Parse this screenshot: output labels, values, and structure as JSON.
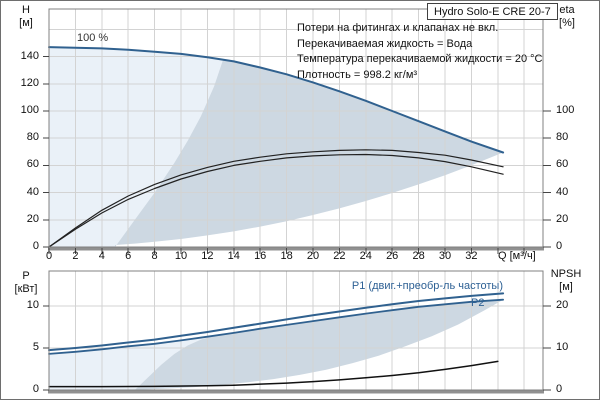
{
  "window": {
    "background": "#ffffff",
    "border_color": "#6e6e6e"
  },
  "axes": {
    "h": [
      "H",
      "[м]"
    ],
    "eta": [
      "eta",
      "[%]"
    ],
    "p": [
      "P",
      "[кВт]"
    ],
    "npsh": [
      "NPSH",
      "[м]"
    ],
    "q": "Q [м³/ч]"
  },
  "annotations": [
    "Потери на фитингах и клапанах не вкл.",
    "Перекачиваемая жидкость = Вода",
    "Температура перекачиваемой жидкости = 20 °C",
    "Плотность = 998.2 кг/м³"
  ],
  "curve_labels": {
    "speed": "100 %",
    "p1": "P1 (двиг.+преобр-ль частоты)",
    "p2": "P2"
  },
  "colors": {
    "main_curve": "#30618f",
    "eta_curve": "#222222",
    "npsh_curve": "#111111",
    "curve_label": "#2d6094",
    "area_light": "#eaf1f8",
    "area_envelope": "#cdd8e2",
    "grid": "#d3d3d3",
    "plot_border": "#808080",
    "axis_line": "#909090",
    "text": "#111111"
  },
  "chart_data": [
    {
      "type": "line",
      "title": "Hydro Solo-E CRE 20-7",
      "xlabel": "Q [м³/ч]",
      "ylabel_left": "H [м]",
      "ylabel_right": "eta [%]",
      "x_axis": {
        "ticks": [
          0,
          2,
          4,
          6,
          8,
          10,
          12,
          14,
          16,
          18,
          20,
          22,
          24,
          26,
          28,
          30,
          32
        ],
        "grid": [
          0,
          2,
          4,
          6,
          8,
          10,
          12,
          14,
          16,
          18,
          20,
          22,
          24,
          26,
          28,
          30,
          32,
          34,
          36
        ],
        "range": [
          0,
          37.4
        ]
      },
      "y_left": {
        "ticks": [
          0,
          20,
          40,
          60,
          80,
          100,
          120,
          140
        ],
        "grid": [
          20,
          40,
          60,
          80,
          100,
          120,
          140,
          160
        ],
        "range": [
          0,
          175
        ]
      },
      "y_right": {
        "ticks": [
          0,
          20,
          40,
          60,
          80,
          100
        ],
        "range": [
          0,
          175
        ]
      },
      "series": [
        {
          "name": "head-100pct-speed",
          "axis": "left",
          "color": "#30618f",
          "width": 2,
          "points": [
            [
              0,
              147
            ],
            [
              2,
              146.5
            ],
            [
              4,
              146
            ],
            [
              6,
              145
            ],
            [
              8,
              143.5
            ],
            [
              10,
              142
            ],
            [
              12,
              139.5
            ],
            [
              14,
              136.5
            ],
            [
              16,
              132
            ],
            [
              18,
              127
            ],
            [
              20,
              121
            ],
            [
              22,
              114.5
            ],
            [
              24,
              107.5
            ],
            [
              26,
              100
            ],
            [
              28,
              92.5
            ],
            [
              30,
              85
            ],
            [
              32,
              77.5
            ],
            [
              34.4,
              69.5
            ]
          ]
        },
        {
          "name": "eta-upper",
          "axis": "right",
          "color": "#222222",
          "width": 1.2,
          "points": [
            [
              0,
              0
            ],
            [
              2,
              14
            ],
            [
              4,
              27
            ],
            [
              6,
              37.5
            ],
            [
              8,
              46
            ],
            [
              10,
              53
            ],
            [
              12,
              58.5
            ],
            [
              14,
              63
            ],
            [
              16,
              66
            ],
            [
              18,
              68.5
            ],
            [
              20,
              70
            ],
            [
              22,
              71
            ],
            [
              24,
              71.5
            ],
            [
              26,
              71
            ],
            [
              28,
              69.5
            ],
            [
              30,
              67.5
            ],
            [
              32,
              64
            ],
            [
              34.4,
              59
            ]
          ]
        },
        {
          "name": "eta-lower",
          "axis": "right",
          "color": "#222222",
          "width": 1.2,
          "points": [
            [
              0,
              0
            ],
            [
              2,
              13
            ],
            [
              4,
              25
            ],
            [
              6,
              35
            ],
            [
              8,
              43
            ],
            [
              10,
              50
            ],
            [
              12,
              55.5
            ],
            [
              14,
              60
            ],
            [
              16,
              63
            ],
            [
              18,
              65.5
            ],
            [
              20,
              67
            ],
            [
              22,
              67.8
            ],
            [
              24,
              68
            ],
            [
              26,
              67.3
            ],
            [
              28,
              65.5
            ],
            [
              30,
              62.8
            ],
            [
              32,
              59
            ],
            [
              34.4,
              53.5
            ]
          ]
        }
      ],
      "regions": [
        {
          "name": "qh-area-light",
          "color": "#eaf1f8",
          "points": [
            [
              0,
              0
            ],
            [
              0,
              147
            ],
            [
              2,
              146.5
            ],
            [
              4,
              146
            ],
            [
              6,
              145
            ],
            [
              8,
              143.5
            ],
            [
              10,
              142
            ],
            [
              12,
              139.5
            ],
            [
              13.2,
              138
            ],
            [
              12.5,
              118
            ],
            [
              11.5,
              96
            ],
            [
              10.5,
              78
            ],
            [
              9.5,
              62
            ],
            [
              8,
              40
            ],
            [
              6.5,
              20
            ],
            [
              5,
              0
            ]
          ]
        },
        {
          "name": "operating-envelope",
          "color": "#cdd8e2",
          "points": [
            [
              5,
              0
            ],
            [
              6.5,
              20
            ],
            [
              8,
              40
            ],
            [
              9.5,
              62
            ],
            [
              10.5,
              78
            ],
            [
              11.5,
              96
            ],
            [
              12.5,
              118
            ],
            [
              13.2,
              138
            ],
            [
              14,
              136.5
            ],
            [
              16,
              132
            ],
            [
              18,
              127
            ],
            [
              20,
              121
            ],
            [
              22,
              114.5
            ],
            [
              24,
              107.5
            ],
            [
              26,
              100
            ],
            [
              28,
              92.5
            ],
            [
              30,
              85
            ],
            [
              32,
              77.5
            ],
            [
              34.4,
              69.5
            ],
            [
              32,
              60.1
            ],
            [
              30,
              52.8
            ],
            [
              28,
              46
            ],
            [
              26,
              39.7
            ],
            [
              24,
              33.8
            ],
            [
              22,
              28.4
            ],
            [
              20,
              23.5
            ],
            [
              18,
              19
            ],
            [
              16,
              15
            ],
            [
              14,
              11.5
            ],
            [
              12,
              8.5
            ],
            [
              10,
              5.9
            ],
            [
              8,
              3.8
            ],
            [
              6.5,
              2.5
            ],
            [
              5,
              1.5
            ]
          ]
        }
      ]
    },
    {
      "type": "line",
      "title": "",
      "xlabel": "Q [м³/ч]",
      "ylabel_left": "P [кВт]",
      "ylabel_right": "NPSH [м]",
      "x_axis": {
        "ticks": [],
        "grid": [
          0,
          2,
          4,
          6,
          8,
          10,
          12,
          14,
          16,
          18,
          20,
          22,
          24,
          26,
          28,
          30,
          32,
          34,
          36
        ],
        "range": [
          0,
          37.4
        ]
      },
      "y_left": {
        "ticks": [
          0,
          5,
          10
        ],
        "grid": [
          5,
          10
        ],
        "range": [
          0,
          14.2
        ]
      },
      "y_right": {
        "ticks": [
          0,
          10,
          20
        ],
        "range": [
          0,
          28.3
        ]
      },
      "series": [
        {
          "name": "p1-motor-plus-frequency-converter",
          "axis": "left",
          "color": "#30618f",
          "width": 2,
          "points": [
            [
              0,
              4.75
            ],
            [
              2,
              5.0
            ],
            [
              4,
              5.3
            ],
            [
              6,
              5.65
            ],
            [
              8,
              6.0
            ],
            [
              10,
              6.45
            ],
            [
              12,
              6.9
            ],
            [
              14,
              7.4
            ],
            [
              16,
              7.9
            ],
            [
              18,
              8.4
            ],
            [
              20,
              8.9
            ],
            [
              22,
              9.35
            ],
            [
              24,
              9.8
            ],
            [
              26,
              10.2
            ],
            [
              28,
              10.6
            ],
            [
              30,
              10.9
            ],
            [
              32,
              11.2
            ],
            [
              34.4,
              11.5
            ]
          ]
        },
        {
          "name": "p2-shaft-power",
          "axis": "left",
          "color": "#30618f",
          "width": 1.8,
          "points": [
            [
              0,
              4.3
            ],
            [
              2,
              4.55
            ],
            [
              4,
              4.85
            ],
            [
              6,
              5.2
            ],
            [
              8,
              5.5
            ],
            [
              10,
              5.9
            ],
            [
              12,
              6.35
            ],
            [
              14,
              6.8
            ],
            [
              16,
              7.3
            ],
            [
              18,
              7.75
            ],
            [
              20,
              8.2
            ],
            [
              22,
              8.65
            ],
            [
              24,
              9.1
            ],
            [
              26,
              9.5
            ],
            [
              28,
              9.9
            ],
            [
              30,
              10.2
            ],
            [
              32,
              10.5
            ],
            [
              34.4,
              10.75
            ]
          ]
        },
        {
          "name": "npsh",
          "axis": "right",
          "color": "#111111",
          "width": 1.5,
          "points": [
            [
              0,
              0.8
            ],
            [
              4,
              0.8
            ],
            [
              8,
              0.85
            ],
            [
              12,
              1.0
            ],
            [
              14,
              1.15
            ],
            [
              16,
              1.4
            ],
            [
              18,
              1.65
            ],
            [
              20,
              2.0
            ],
            [
              22,
              2.4
            ],
            [
              24,
              2.9
            ],
            [
              26,
              3.45
            ],
            [
              28,
              4.1
            ],
            [
              30,
              4.9
            ],
            [
              32,
              5.8
            ],
            [
              34,
              6.8
            ]
          ]
        }
      ],
      "regions": [
        {
          "name": "power-area-light",
          "color": "#eaf1f8",
          "points": [
            [
              0,
              0
            ],
            [
              0,
              4.3
            ],
            [
              2,
              4.55
            ],
            [
              4,
              4.85
            ],
            [
              6,
              5.2
            ],
            [
              8,
              5.5
            ],
            [
              10,
              5.9
            ],
            [
              12,
              6.35
            ],
            [
              12.5,
              6.45
            ],
            [
              11.5,
              6.0
            ],
            [
              10.5,
              5.3
            ],
            [
              9.5,
              4.3
            ],
            [
              8.5,
              3.0
            ],
            [
              7.5,
              1.5
            ],
            [
              6.5,
              0
            ]
          ]
        },
        {
          "name": "power-operating-envelope",
          "color": "#cdd8e2",
          "points": [
            [
              6.5,
              0
            ],
            [
              7.5,
              1.5
            ],
            [
              8.5,
              3.0
            ],
            [
              9.5,
              4.3
            ],
            [
              10.5,
              5.3
            ],
            [
              11.5,
              6.0
            ],
            [
              12.5,
              6.45
            ],
            [
              14,
              6.8
            ],
            [
              16,
              7.3
            ],
            [
              18,
              7.75
            ],
            [
              20,
              8.2
            ],
            [
              22,
              8.65
            ],
            [
              24,
              9.1
            ],
            [
              26,
              9.5
            ],
            [
              28,
              9.9
            ],
            [
              30,
              10.2
            ],
            [
              32,
              10.5
            ],
            [
              34.4,
              10.75
            ],
            [
              33,
              9.5
            ],
            [
              31,
              7.8
            ],
            [
              29,
              6.4
            ],
            [
              27,
              5.2
            ],
            [
              25,
              4.1
            ],
            [
              23,
              3.2
            ],
            [
              21,
              2.4
            ],
            [
              19,
              1.8
            ],
            [
              17,
              1.3
            ],
            [
              15,
              0.9
            ],
            [
              13,
              0.6
            ],
            [
              11,
              0.35
            ],
            [
              9,
              0.18
            ],
            [
              7.5,
              0.07
            ],
            [
              6.5,
              0.02
            ]
          ]
        }
      ]
    }
  ]
}
